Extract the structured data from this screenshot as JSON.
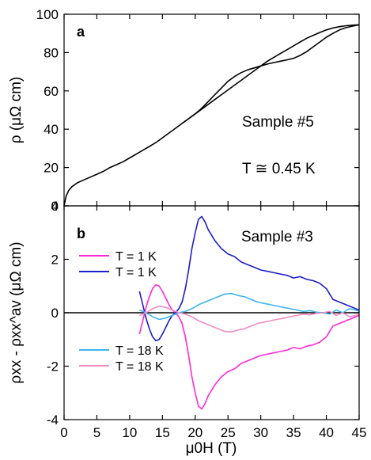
{
  "chart_data": [
    {
      "type": "line",
      "panel_label": "a",
      "ylabel": "ρ (μΩ cm)",
      "xlim": [
        0,
        45
      ],
      "ylim": [
        0,
        100
      ],
      "xticks": [
        0,
        5,
        10,
        15,
        20,
        25,
        30,
        35,
        40,
        45
      ],
      "yticks": [
        0,
        20,
        40,
        60,
        80,
        100
      ],
      "annotations": [
        "Sample #5",
        "T ≅ 0.45 K"
      ],
      "series": [
        {
          "color": "#000000",
          "x": [
            0,
            0.3,
            0.7,
            1.2,
            2,
            3,
            4,
            5,
            6,
            7,
            8,
            9,
            10,
            11,
            12,
            13,
            14,
            15,
            16,
            17,
            18,
            19,
            20,
            21,
            22,
            23,
            24,
            25,
            26,
            27,
            28,
            29,
            30,
            31,
            32,
            33,
            34,
            35,
            36,
            37,
            38,
            39,
            40,
            41,
            42,
            43,
            44,
            45
          ],
          "y": [
            0,
            5,
            8,
            10,
            12,
            13.5,
            15,
            16.5,
            18,
            20,
            21.5,
            23,
            25,
            27,
            29,
            31,
            33,
            35.5,
            38,
            40.5,
            43,
            45.5,
            48,
            50.5,
            53,
            55.5,
            58,
            60.5,
            63,
            65.5,
            68,
            70.5,
            73,
            75.5,
            77.5,
            79.5,
            81.5,
            83.5,
            85.5,
            87.5,
            89,
            90.5,
            91.8,
            92.8,
            93.5,
            94.0,
            94.3,
            94.5
          ]
        },
        {
          "color": "#000000",
          "x": [
            18,
            19,
            20,
            21,
            22,
            23,
            24,
            25,
            26,
            27,
            28,
            29,
            30,
            31,
            32,
            33,
            34,
            35,
            36,
            37,
            38,
            39,
            40,
            41,
            42,
            43,
            44,
            45
          ],
          "y": [
            43,
            45.5,
            48,
            51,
            54.5,
            58,
            61.5,
            65,
            67.5,
            69.5,
            71,
            72,
            73,
            74,
            74.8,
            75.5,
            76.2,
            77,
            78.5,
            80.5,
            83,
            85.5,
            88,
            90,
            91.8,
            93,
            93.8,
            94.5
          ]
        }
      ]
    },
    {
      "type": "line",
      "panel_label": "b",
      "xlabel": "μ0H (T)",
      "ylabel": "ρxx - ρxx^av (μΩ cm)",
      "xlim": [
        0,
        45
      ],
      "ylim": [
        -4,
        4
      ],
      "xticks": [
        0,
        5,
        10,
        15,
        20,
        25,
        30,
        35,
        40,
        45
      ],
      "yticks": [
        -4,
        -2,
        0,
        2,
        4
      ],
      "annotations": [
        "Sample #3"
      ],
      "legend_upper": [
        {
          "label": "T = 1 K",
          "color": "#ff2ad4"
        },
        {
          "label": "T = 1 K",
          "color": "#1e1ec8"
        }
      ],
      "legend_lower": [
        {
          "label": "T = 18 K",
          "color": "#3fb4f0"
        },
        {
          "label": "T = 18 K",
          "color": "#f28cc4"
        }
      ],
      "series": [
        {
          "label": "T = 1 K",
          "color": "#ff2ad4",
          "x": [
            11.5,
            12,
            12.5,
            13,
            13.5,
            14,
            14.5,
            15,
            15.5,
            16,
            16.5,
            17,
            17.5,
            18,
            18.5,
            19,
            19.5,
            20,
            20.5,
            21,
            21.5,
            22,
            22.5,
            23,
            24,
            25,
            26,
            27,
            28,
            29,
            30,
            31,
            32,
            33,
            34,
            35,
            36,
            37,
            38,
            39,
            40,
            41,
            42,
            43,
            44,
            45
          ],
          "y": [
            -0.8,
            -0.3,
            0.2,
            0.6,
            0.9,
            1.05,
            1.0,
            0.8,
            0.55,
            0.3,
            0.1,
            0.0,
            -0.15,
            -0.4,
            -0.9,
            -1.6,
            -2.4,
            -3.0,
            -3.5,
            -3.6,
            -3.4,
            -3.1,
            -2.9,
            -2.7,
            -2.4,
            -2.2,
            -2.1,
            -1.9,
            -1.8,
            -1.7,
            -1.6,
            -1.55,
            -1.5,
            -1.45,
            -1.4,
            -1.3,
            -1.35,
            -1.25,
            -1.2,
            -1.1,
            -0.9,
            -0.5,
            -0.4,
            -0.3,
            -0.2,
            -0.1
          ]
        },
        {
          "label": "T = 1 K",
          "color": "#1e1ec8",
          "x": [
            11.5,
            12,
            12.5,
            13,
            13.5,
            14,
            14.5,
            15,
            15.5,
            16,
            16.5,
            17,
            17.5,
            18,
            18.5,
            19,
            19.5,
            20,
            20.5,
            21,
            21.5,
            22,
            22.5,
            23,
            24,
            25,
            26,
            27,
            28,
            29,
            30,
            31,
            32,
            33,
            34,
            35,
            36,
            37,
            38,
            39,
            40,
            41,
            42,
            43,
            44,
            45
          ],
          "y": [
            0.8,
            0.3,
            -0.2,
            -0.6,
            -0.9,
            -1.05,
            -1.0,
            -0.8,
            -0.55,
            -0.3,
            -0.1,
            0.0,
            0.15,
            0.4,
            0.9,
            1.6,
            2.4,
            3.0,
            3.5,
            3.6,
            3.4,
            3.1,
            2.9,
            2.7,
            2.4,
            2.2,
            2.1,
            1.9,
            1.8,
            1.7,
            1.6,
            1.55,
            1.5,
            1.45,
            1.4,
            1.3,
            1.35,
            1.25,
            1.2,
            1.1,
            0.9,
            0.5,
            0.4,
            0.3,
            0.2,
            0.1
          ]
        },
        {
          "label": "T = 18 K",
          "color": "#3fb4f0",
          "x": [
            11.5,
            12.5,
            13.5,
            14.5,
            15.5,
            16.5,
            17.5,
            18.5,
            19.5,
            20.5,
            21.5,
            22.5,
            23.5,
            24.5,
            25.5,
            26.5,
            27.5,
            28.5,
            29.5,
            30.5,
            31.5,
            32.5,
            33.5,
            34.5,
            35.5,
            36.5,
            37.5,
            38.5,
            39.5,
            40.5,
            41.5,
            42.5,
            43.5,
            44.5,
            45
          ],
          "y": [
            0.1,
            0.0,
            -0.15,
            -0.25,
            -0.2,
            -0.1,
            0.0,
            0.05,
            0.15,
            0.3,
            0.4,
            0.5,
            0.6,
            0.7,
            0.72,
            0.65,
            0.6,
            0.5,
            0.4,
            0.35,
            0.3,
            0.25,
            0.2,
            0.15,
            0.1,
            0.05,
            0.08,
            0.02,
            0.0,
            -0.05,
            0.1,
            0.0,
            0.15,
            0.1,
            0.05
          ]
        },
        {
          "label": "T = 18 K",
          "color": "#f28cc4",
          "x": [
            11.5,
            12.5,
            13.5,
            14.5,
            15.5,
            16.5,
            17.5,
            18.5,
            19.5,
            20.5,
            21.5,
            22.5,
            23.5,
            24.5,
            25.5,
            26.5,
            27.5,
            28.5,
            29.5,
            30.5,
            31.5,
            32.5,
            33.5,
            34.5,
            35.5,
            36.5,
            37.5,
            38.5,
            39.5,
            40.5,
            41.5,
            42.5,
            43.5,
            44.5,
            45
          ],
          "y": [
            -0.1,
            0.0,
            0.15,
            0.25,
            0.2,
            0.1,
            0.0,
            -0.05,
            -0.15,
            -0.3,
            -0.4,
            -0.5,
            -0.6,
            -0.7,
            -0.72,
            -0.65,
            -0.6,
            -0.5,
            -0.4,
            -0.35,
            -0.3,
            -0.25,
            -0.2,
            -0.15,
            -0.1,
            -0.05,
            -0.08,
            -0.02,
            0.0,
            0.05,
            -0.1,
            0.0,
            -0.15,
            -0.1,
            -0.05
          ]
        }
      ]
    }
  ]
}
